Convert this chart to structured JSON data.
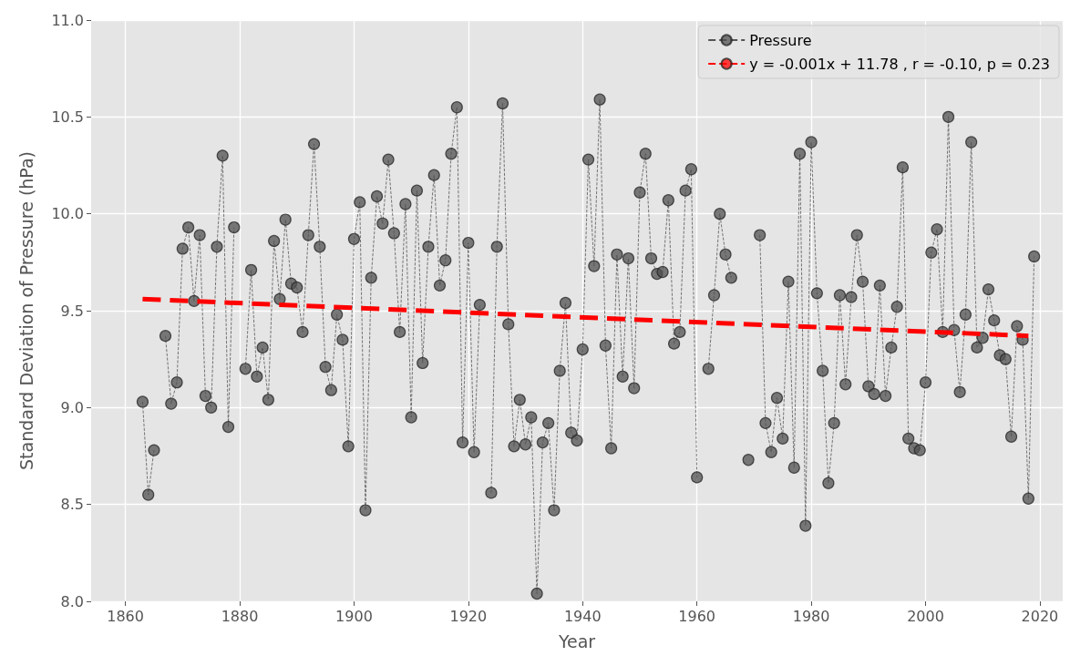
{
  "chart_data": {
    "type": "line",
    "xlabel": "Year",
    "ylabel": "Standard Deviation of Pressure (hPa)",
    "xlim": [
      1854,
      2024
    ],
    "xticks": [
      1860,
      1880,
      1900,
      1920,
      1940,
      1960,
      1980,
      2000,
      2020
    ],
    "ylim": [
      8,
      11
    ],
    "yticks": [
      {
        "value": 8,
        "label": "8.0"
      },
      {
        "value": 8.5,
        "label": "8.5"
      },
      {
        "value": 9,
        "label": "9.0"
      },
      {
        "value": 9.5,
        "label": "9.5"
      },
      {
        "value": 10,
        "label": "10.0"
      },
      {
        "value": 10.5,
        "label": "10.5"
      },
      {
        "value": 11,
        "label": "11.0"
      }
    ],
    "grid": true,
    "legend": "top right",
    "series": [
      {
        "name": "Pressure",
        "color": "#505050",
        "marker": "circle",
        "line_style": "dashed",
        "x": [
          1863,
          1864,
          1865,
          1866,
          1867,
          1868,
          1869,
          1870,
          1871,
          1872,
          1873,
          1874,
          1875,
          1876,
          1877,
          1878,
          1879,
          1880,
          1881,
          1882,
          1883,
          1884,
          1885,
          1886,
          1887,
          1888,
          1889,
          1890,
          1891,
          1892,
          1893,
          1894,
          1895,
          1896,
          1897,
          1898,
          1899,
          1900,
          1901,
          1902,
          1903,
          1904,
          1905,
          1906,
          1907,
          1908,
          1909,
          1910,
          1911,
          1912,
          1913,
          1914,
          1915,
          1916,
          1917,
          1918,
          1919,
          1920,
          1921,
          1922,
          1923,
          1924,
          1925,
          1926,
          1927,
          1928,
          1929,
          1930,
          1931,
          1932,
          1933,
          1934,
          1935,
          1936,
          1937,
          1938,
          1939,
          1940,
          1941,
          1942,
          1943,
          1944,
          1945,
          1946,
          1947,
          1948,
          1949,
          1950,
          1951,
          1952,
          1953,
          1954,
          1955,
          1956,
          1957,
          1958,
          1959,
          1960,
          1961,
          1962,
          1963,
          1964,
          1965,
          1966,
          1967,
          1968,
          1969,
          1970,
          1971,
          1972,
          1973,
          1974,
          1975,
          1976,
          1977,
          1978,
          1979,
          1980,
          1981,
          1982,
          1983,
          1984,
          1985,
          1986,
          1987,
          1988,
          1989,
          1990,
          1991,
          1992,
          1993,
          1994,
          1995,
          1996,
          1997,
          1998,
          1999,
          2000,
          2001,
          2002,
          2003,
          2004,
          2005,
          2006,
          2007,
          2008,
          2009,
          2010,
          2011,
          2012,
          2013,
          2014,
          2015,
          2016,
          2017,
          2018,
          2019
        ],
        "values": [
          9.03,
          8.55,
          8.78,
          null,
          9.37,
          9.02,
          9.13,
          9.82,
          9.93,
          9.55,
          9.89,
          9.06,
          9.0,
          9.83,
          10.3,
          8.9,
          9.93,
          null,
          9.2,
          9.71,
          9.16,
          9.31,
          9.04,
          9.86,
          9.56,
          9.97,
          9.64,
          9.62,
          9.39,
          9.89,
          10.36,
          9.83,
          9.21,
          9.09,
          9.48,
          9.35,
          8.8,
          9.87,
          10.06,
          8.47,
          9.67,
          10.09,
          9.95,
          10.28,
          9.9,
          9.39,
          10.05,
          8.95,
          10.12,
          9.23,
          9.83,
          10.2,
          9.63,
          9.76,
          10.31,
          10.55,
          8.82,
          9.85,
          8.77,
          9.53,
          null,
          8.56,
          9.83,
          10.57,
          9.43,
          8.8,
          9.04,
          8.81,
          8.95,
          8.04,
          8.82,
          8.92,
          8.47,
          9.19,
          9.54,
          8.87,
          8.83,
          9.3,
          10.28,
          9.73,
          10.59,
          9.32,
          8.79,
          9.79,
          9.16,
          9.77,
          9.1,
          10.11,
          10.31,
          9.77,
          9.69,
          9.7,
          10.07,
          9.33,
          9.39,
          10.12,
          10.23,
          8.64,
          null,
          9.2,
          9.58,
          10.0,
          9.79,
          9.67,
          null,
          null,
          8.73,
          null,
          9.89,
          8.92,
          8.77,
          9.05,
          8.84,
          9.65,
          8.69,
          10.31,
          8.39,
          10.37,
          9.59,
          9.19,
          8.61,
          8.92,
          9.58,
          9.12,
          9.57,
          9.89,
          9.65,
          9.11,
          9.07,
          9.63,
          9.06,
          9.31,
          9.52,
          10.24,
          8.84,
          8.79,
          8.78,
          9.13,
          9.8,
          9.92,
          9.39,
          10.5,
          9.4,
          9.08,
          9.48,
          10.37,
          9.31,
          9.36,
          9.61,
          9.45,
          9.27,
          9.25,
          8.85,
          9.42,
          9.35,
          8.53,
          9.78
        ]
      },
      {
        "name": "y = -0.001x + 11.78 , r = -0.10, p = 0.23",
        "color": "#ff0000",
        "marker": "none",
        "line_style": "dashed",
        "x": [
          1863,
          2018
        ],
        "values": [
          9.56,
          9.37
        ]
      }
    ]
  }
}
